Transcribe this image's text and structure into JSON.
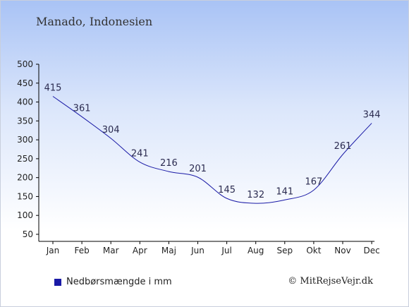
{
  "header": {
    "title": "Manado, Indonesien"
  },
  "legend": {
    "label": "Nedbørsmængde i mm"
  },
  "credit": "© MitRejseVejr.dk",
  "colors": {
    "line": "#1a1aa6",
    "legend_swatch": "#1a1aa6"
  },
  "chart_data": {
    "type": "line",
    "categories": [
      "Jan",
      "Feb",
      "Mar",
      "Apr",
      "Maj",
      "Jun",
      "Jul",
      "Aug",
      "Sep",
      "Okt",
      "Nov",
      "Dec"
    ],
    "series": [
      {
        "name": "Nedbørsmængde i mm",
        "values": [
          415,
          361,
          304,
          241,
          216,
          201,
          145,
          132,
          141,
          167,
          261,
          344
        ]
      }
    ],
    "yticks": [
      50,
      100,
      150,
      200,
      250,
      300,
      350,
      400,
      450,
      500
    ],
    "ylim": [
      50,
      500
    ],
    "grid": false,
    "legend_position": "bottom-left"
  }
}
